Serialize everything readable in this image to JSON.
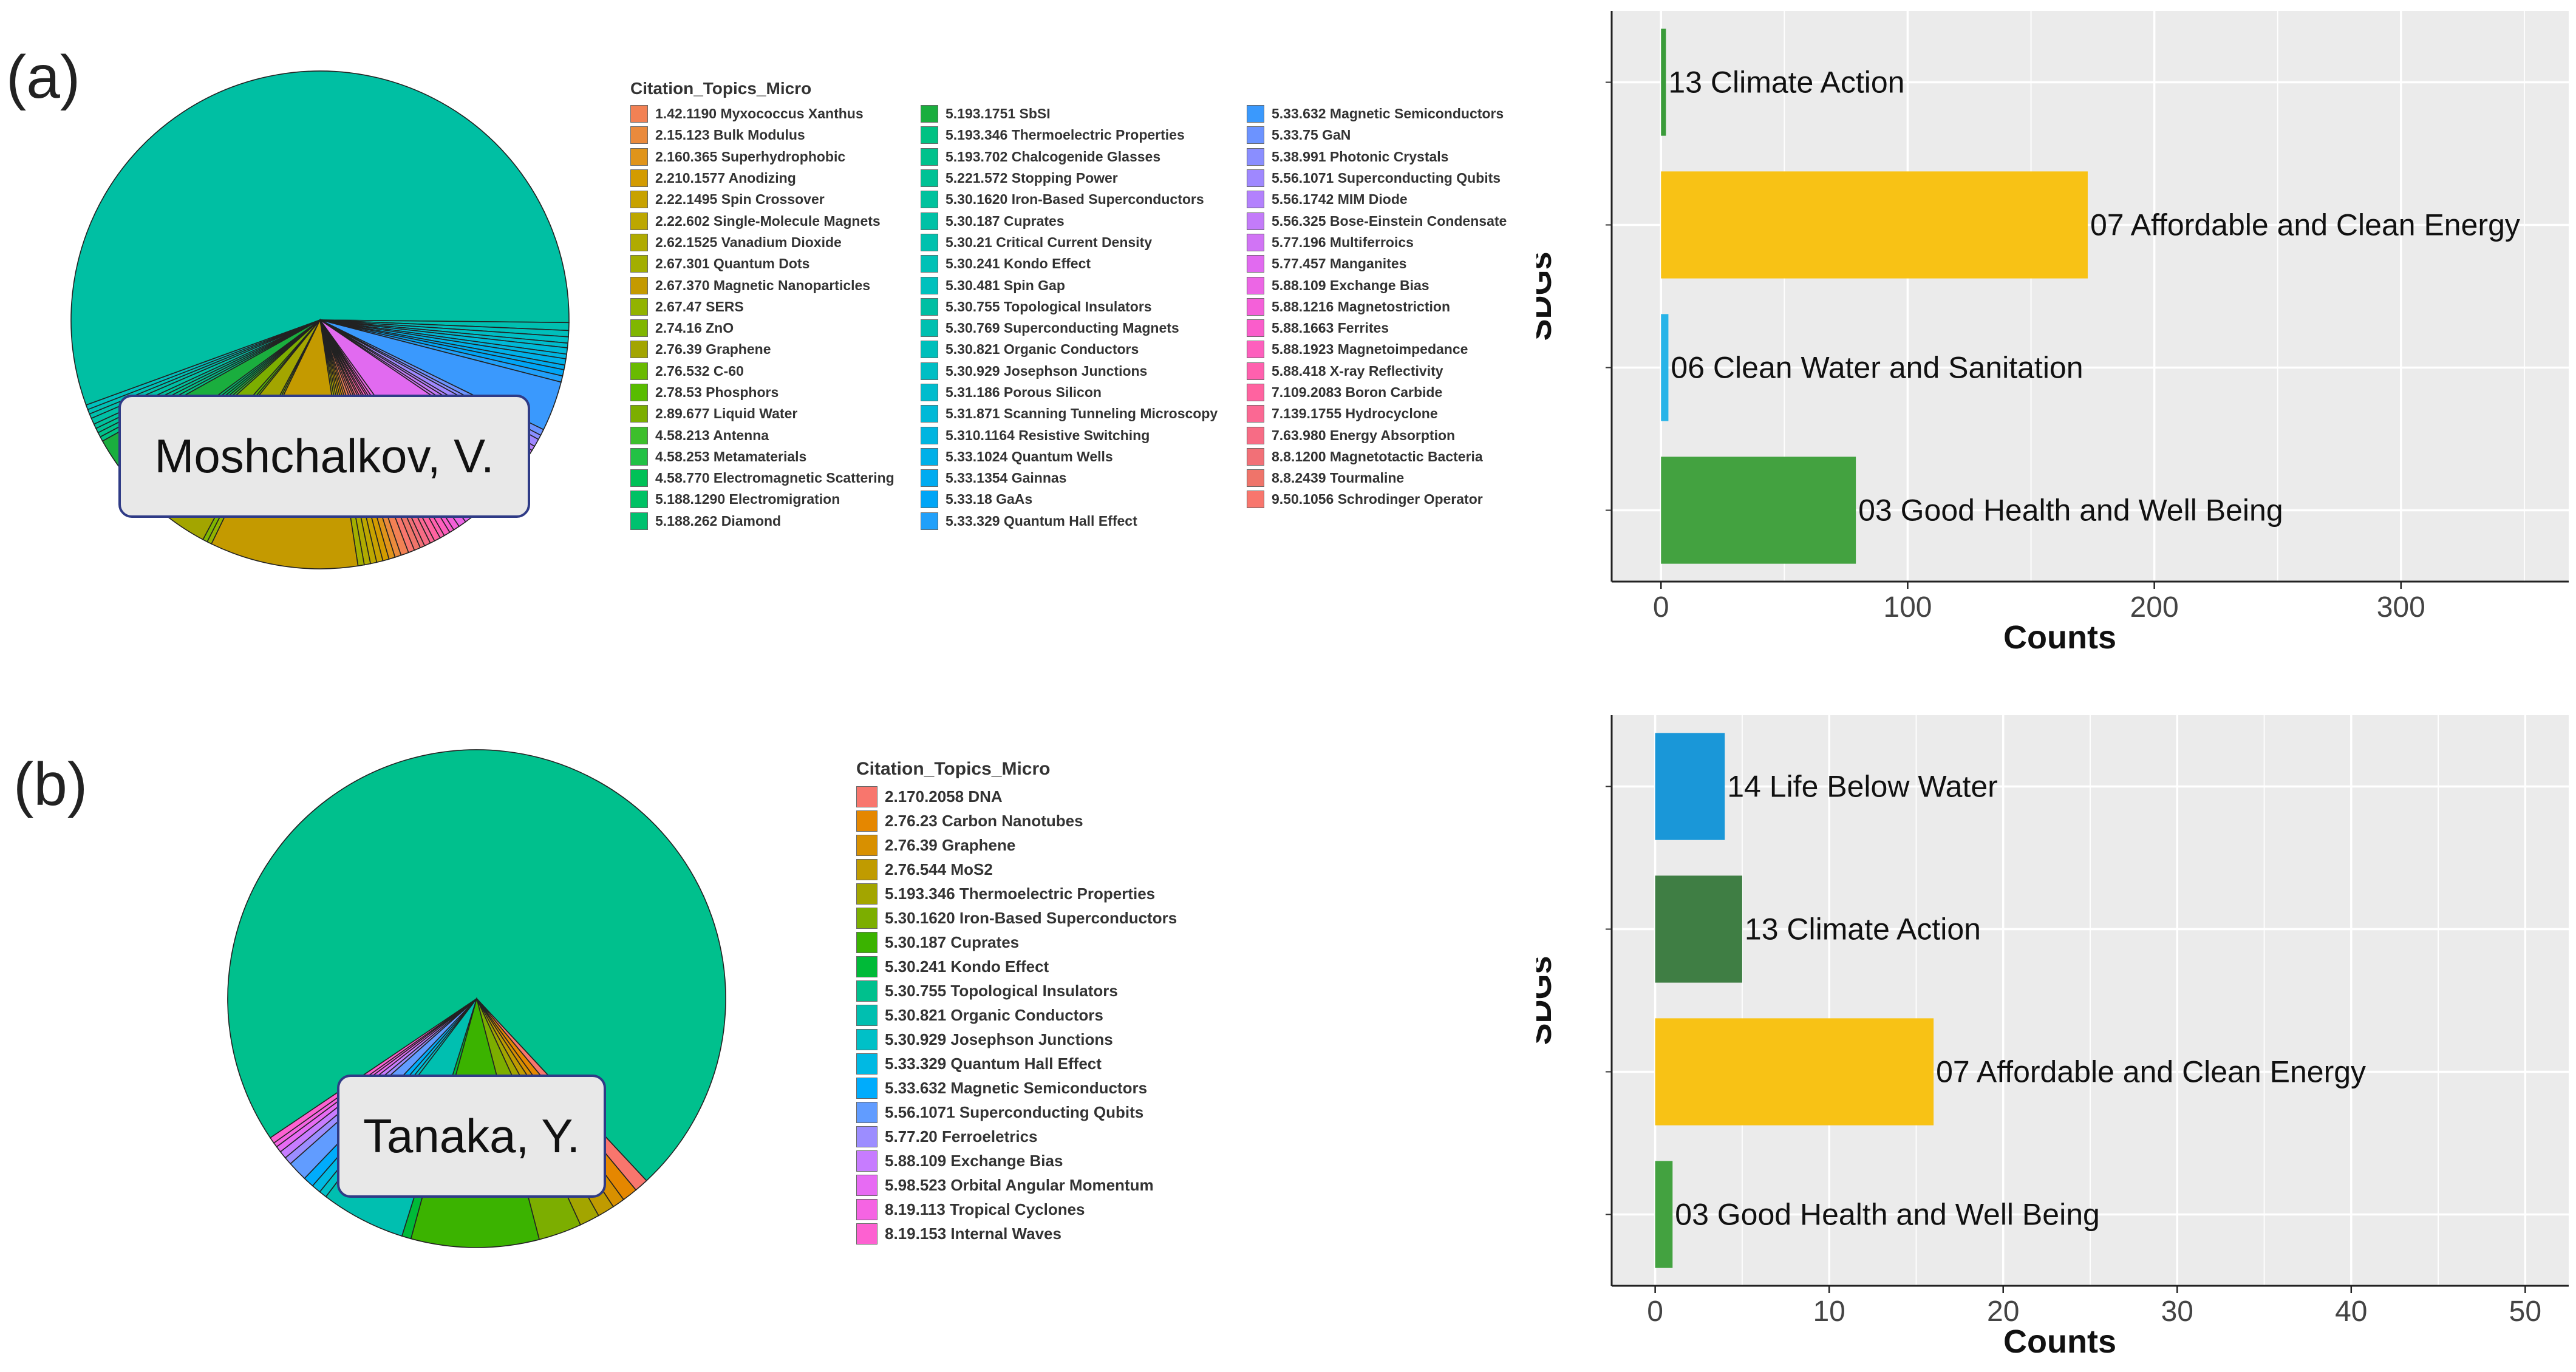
{
  "panels": {
    "a": {
      "label": "(a)",
      "author": "Moshchalkov, V.",
      "legend_title": "Citation_Topics_Micro",
      "legend_columns": [
        [
          "1.42.1190 Myxococcus Xanthus",
          "2.15.123 Bulk Modulus",
          "2.160.365 Superhydrophobic",
          "2.210.1577 Anodizing",
          "2.22.1495 Spin Crossover",
          "2.22.602 Single-Molecule Magnets",
          "2.62.1525 Vanadium Dioxide",
          "2.67.301 Quantum Dots",
          "2.67.370 Magnetic Nanoparticles",
          "2.67.47 SERS",
          "2.74.16 ZnO",
          "2.76.39 Graphene",
          "2.76.532 C-60",
          "2.78.53 Phosphors",
          "2.89.677 Liquid Water",
          "4.58.213 Antenna",
          "4.58.253 Metamaterials",
          "4.58.770 Electromagnetic Scattering",
          "5.188.1290 Electromigration",
          "5.188.262 Diamond"
        ],
        [
          "5.193.1751 SbSI",
          "5.193.346 Thermoelectric Properties",
          "5.193.702 Chalcogenide Glasses",
          "5.221.572 Stopping Power",
          "5.30.1620 Iron-Based Superconductors",
          "5.30.187 Cuprates",
          "5.30.21 Critical Current Density",
          "5.30.241 Kondo Effect",
          "5.30.481 Spin Gap",
          "5.30.755 Topological Insulators",
          "5.30.769 Superconducting Magnets",
          "5.30.821 Organic Conductors",
          "5.30.929 Josephson Junctions",
          "5.31.186 Porous Silicon",
          "5.31.871 Scanning Tunneling Microscopy",
          "5.310.1164 Resistive Switching",
          "5.33.1024 Quantum Wells",
          "5.33.1354 Gainnas",
          "5.33.18 GaAs",
          "5.33.329 Quantum Hall Effect"
        ],
        [
          "5.33.632 Magnetic Semiconductors",
          "5.33.75 GaN",
          "5.38.991 Photonic Crystals",
          "5.56.1071 Superconducting Qubits",
          "5.56.1742 MIM Diode",
          "5.56.325 Bose-Einstein Condensate",
          "5.77.196 Multiferroics",
          "5.77.457 Manganites",
          "5.88.109 Exchange Bias",
          "5.88.1216 Magnetostriction",
          "5.88.1663 Ferrites",
          "5.88.1923 Magnetoimpedance",
          "5.88.418 X-ray Reflectivity",
          "7.109.2083 Boron Carbide",
          "7.139.1755 Hydrocyclone",
          "7.63.980 Energy Absorption",
          "8.8.1200 Magnetotactic Bacteria",
          "8.8.2439 Tourmaline",
          "9.50.1056 Schrodinger Operator"
        ]
      ]
    },
    "b": {
      "label": "(b)",
      "author": "Tanaka, Y.",
      "legend_title": "Citation_Topics_Micro",
      "legend_items": [
        "2.170.2058 DNA",
        "2.76.23 Carbon Nanotubes",
        "2.76.39 Graphene",
        "2.76.544 MoS2",
        "5.193.346 Thermoelectric Properties",
        "5.30.1620 Iron-Based Superconductors",
        "5.30.187 Cuprates",
        "5.30.241 Kondo Effect",
        "5.30.755 Topological Insulators",
        "5.30.821 Organic Conductors",
        "5.30.929 Josephson Junctions",
        "5.33.329 Quantum Hall Effect",
        "5.33.632 Magnetic Semiconductors",
        "5.56.1071 Superconducting Qubits",
        "5.77.20 Ferroeletrics",
        "5.88.109 Exchange Bias",
        "5.98.523 Orbital Angular Momentum",
        "8.19.113 Tropical Cyclones",
        "8.19.153 Internal Waves"
      ]
    }
  },
  "chart_data": [
    {
      "type": "pie",
      "title": "Moshchalkov, V.",
      "labels": [
        "5.30.755 Topological Insulators",
        "5.30.769 Superconducting Magnets",
        "5.30.821 Organic Conductors",
        "5.30.929 Josephson Junctions",
        "5.31.186 Porous Silicon",
        "5.31.871 Scanning Tunneling Microscopy",
        "5.310.1164 Resistive Switching",
        "5.33.1024 Quantum Wells",
        "5.33.1354 Gainnas",
        "5.33.18 GaAs",
        "5.33.329 Quantum Hall Effect",
        "5.33.632 Magnetic Semiconductors",
        "5.33.75 GaN",
        "5.38.991 Photonic Crystals",
        "5.56.1071 Superconducting Qubits",
        "5.56.1742 MIM Diode",
        "5.56.325 Bose-Einstein Condensate",
        "5.77.196 Multiferroics",
        "5.77.457 Manganites",
        "5.88.109 Exchange Bias",
        "5.88.1216 Magnetostriction",
        "5.88.1663 Ferrites",
        "5.88.1923 Magnetoimpedance",
        "5.88.418 X-ray Reflectivity",
        "7.109.2083 Boron Carbide",
        "7.139.1755 Hydrocyclone",
        "7.63.980 Energy Absorption",
        "8.8.1200 Magnetotactic Bacteria",
        "8.8.2439 Tourmaline",
        "9.50.1056 Schrodinger Operator",
        "1.42.1190 Myxococcus Xanthus",
        "2.15.123 Bulk Modulus",
        "2.160.365 Superhydrophobic",
        "2.210.1577 Anodizing",
        "2.22.1495 Spin Crossover",
        "2.22.602 Single-Molecule Magnets",
        "2.62.1525 Vanadium Dioxide",
        "2.67.301 Quantum Dots",
        "2.67.370 Magnetic Nanoparticles",
        "2.67.47 SERS",
        "2.74.16 ZnO",
        "2.76.39 Graphene",
        "2.76.532 C-60",
        "2.78.53 Phosphors",
        "2.89.677 Liquid Water",
        "4.58.213 Antenna",
        "4.58.253 Metamaterials",
        "4.58.770 Electromagnetic Scattering",
        "5.188.1290 Electromigration",
        "5.188.262 Diamond",
        "5.193.1751 SbSI",
        "5.193.346 Thermoelectric Properties",
        "5.193.702 Chalcogenide Glasses",
        "5.221.572 Stopping Power",
        "5.30.1620 Iron-Based Superconductors",
        "5.30.187 Cuprates",
        "5.30.21 Critical Current Density",
        "5.30.241 Kondo Effect",
        "5.30.481 Spin Gap"
      ],
      "values": [
        55.0,
        0.5,
        0.4,
        0.4,
        0.3,
        0.4,
        0.3,
        0.4,
        0.3,
        0.4,
        0.4,
        3.2,
        0.4,
        0.3,
        0.5,
        0.3,
        0.4,
        0.3,
        5.5,
        0.5,
        0.4,
        0.3,
        0.4,
        0.3,
        0.4,
        0.3,
        0.4,
        0.3,
        0.4,
        0.4,
        0.5,
        0.4,
        0.4,
        0.4,
        0.4,
        0.4,
        0.4,
        0.4,
        9.5,
        0.3,
        0.3,
        3.0,
        0.3,
        0.4,
        1.8,
        0.3,
        0.3,
        0.3,
        0.3,
        0.3,
        2.0,
        0.3,
        0.3,
        0.3,
        0.3,
        0.4,
        0.3,
        0.3,
        0.3
      ],
      "colors": [
        "#00bfa3",
        "#00c0b0",
        "#00bfbb",
        "#00bec4",
        "#00bccd",
        "#00b9d7",
        "#00b5e0",
        "#00b0e8",
        "#00abf0",
        "#00a5f6",
        "#21a0fa",
        "#3a99fd",
        "#6c93ff",
        "#8a8eff",
        "#9f88ff",
        "#b381fd",
        "#c37bf9",
        "#d174f5",
        "#e16af0",
        "#ec66e5",
        "#f460d9",
        "#fa5dcb",
        "#fd5fbd",
        "#ff60ae",
        "#ff63a0",
        "#fb6893",
        "#f76c85",
        "#f27077",
        "#ef746a",
        "#f8766d",
        "#f28154",
        "#ea8a3c",
        "#e0941a",
        "#d39b00",
        "#c8a200",
        "#bda700",
        "#b0ab00",
        "#a3ae00",
        "#c49a00",
        "#92b300",
        "#80b600",
        "#a3a500",
        "#69ba00",
        "#58bc00",
        "#7cae00",
        "#3dbf2c",
        "#22c145",
        "#00c157",
        "#00c264",
        "#00c16f",
        "#1aae3e",
        "#00c283",
        "#00c28c",
        "#00c295",
        "#00c29d",
        "#00c1a6",
        "#00c1ae",
        "#00c1b6",
        "#00c1bd"
      ]
    },
    {
      "type": "bar",
      "orientation": "horizontal",
      "categories": [
        "13 Climate Action",
        "07 Affordable and Clean Energy",
        "06 Clean Water and Sanitation",
        "03 Good Health and Well Being"
      ],
      "values": [
        2,
        173,
        3,
        79
      ],
      "colors": [
        "#3a9b3a",
        "#f8c215",
        "#27b4e8",
        "#43a240"
      ],
      "xlabel": "Counts",
      "ylabel": "SDGs",
      "xlim": [
        -20,
        368
      ],
      "xticks": [
        0,
        100,
        200,
        300
      ],
      "grid": true
    },
    {
      "type": "pie",
      "title": "Tanaka, Y.",
      "labels": [
        "5.30.755 Topological Insulators",
        "2.170.2058 DNA",
        "2.76.23 Carbon Nanotubes",
        "2.76.39 Graphene",
        "2.76.544 MoS2",
        "5.193.346 Thermoelectric Properties",
        "5.30.1620 Iron-Based Superconductors",
        "5.30.187 Cuprates",
        "5.30.241 Kondo Effect",
        "5.30.821 Organic Conductors",
        "5.30.929 Josephson Junctions",
        "5.33.329 Quantum Hall Effect",
        "5.33.632 Magnetic Semiconductors",
        "5.56.1071 Superconducting Qubits",
        "5.77.20 Ferroeletrics",
        "5.88.109 Exchange Bias",
        "5.98.523 Orbital Angular Momentum",
        "8.19.113 Tropical Cyclones",
        "8.19.153 Internal Waves"
      ],
      "values": [
        72.5,
        0.9,
        1.0,
        0.8,
        1.1,
        1.3,
        2.8,
        8.3,
        0.6,
        5.5,
        0.5,
        0.6,
        0.7,
        1.3,
        0.5,
        0.5,
        0.4,
        0.3,
        0.4
      ],
      "colors": [
        "#00c08d",
        "#f8766d",
        "#e58700",
        "#d89000",
        "#c09b00",
        "#a3a500",
        "#7cae00",
        "#3bb300",
        "#00ba38",
        "#00bfb0",
        "#00c0c7",
        "#00b9e3",
        "#00acfc",
        "#619cff",
        "#9c8dff",
        "#c77cff",
        "#e76bf3",
        "#f564e3",
        "#fd61d1"
      ]
    },
    {
      "type": "bar",
      "orientation": "horizontal",
      "categories": [
        "14 Life Below Water",
        "13 Climate Action",
        "07 Affordable and Clean Energy",
        "03 Good Health and Well Being"
      ],
      "values": [
        4,
        5,
        16,
        1
      ],
      "colors": [
        "#1a97d8",
        "#3f7e44",
        "#f8c215",
        "#43a240"
      ],
      "xlabel": "Counts",
      "ylabel": "SDGs",
      "xlim": [
        -2.5,
        52.5
      ],
      "xticks": [
        0,
        10,
        20,
        30,
        40,
        50
      ],
      "grid": true
    }
  ]
}
